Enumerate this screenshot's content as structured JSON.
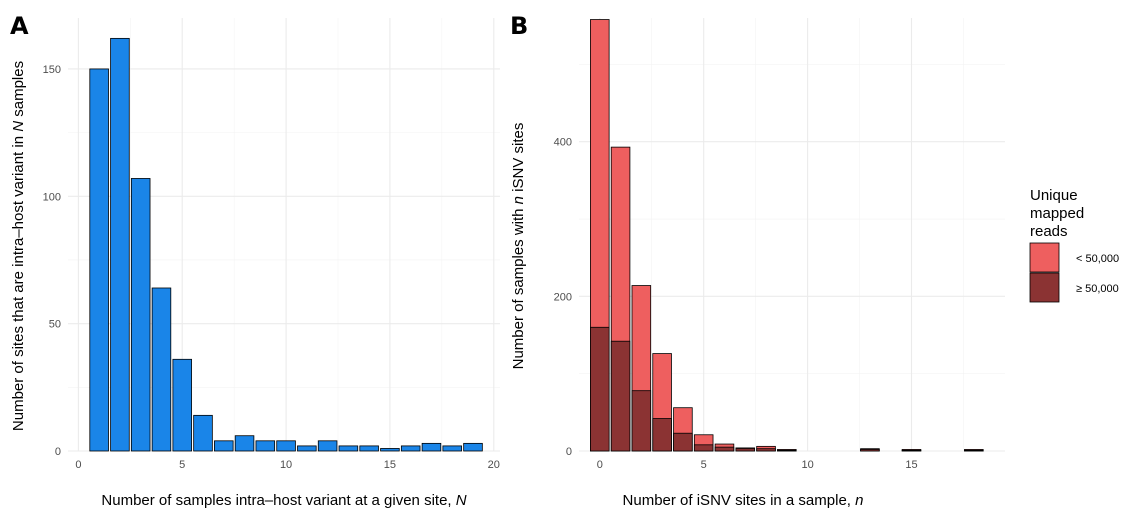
{
  "chart_data": [
    {
      "panel_label": "A",
      "type": "bar",
      "xlabel_text": "Number of samples intra–host variant at a given site, ",
      "xlabel_var": "N",
      "ylabel_text": "Number of sites that are intra–host variant in ",
      "ylabel_var": "N",
      "ylabel_suffix": " samples",
      "xlim": [
        -0.5,
        20.3
      ],
      "ylim": [
        0,
        170
      ],
      "xticks": [
        0,
        5,
        10,
        15,
        20
      ],
      "yticks": [
        0,
        50,
        100,
        150
      ],
      "x": [
        1,
        2,
        3,
        4,
        5,
        6,
        7,
        8,
        9,
        10,
        11,
        12,
        13,
        14,
        15,
        16,
        17,
        18,
        19
      ],
      "values": [
        150,
        162,
        107,
        64,
        36,
        14,
        4,
        6,
        4,
        4,
        2,
        4,
        2,
        2,
        1,
        2,
        3,
        2,
        3
      ],
      "bar_color": "#1a85e8",
      "grid": true
    },
    {
      "panel_label": "B",
      "type": "bar",
      "stacked": false,
      "xlabel_text": "Number of iSNV sites in a sample, ",
      "xlabel_var": "n",
      "ylabel_text": "Number of samples with ",
      "ylabel_var": "n",
      "ylabel_suffix": " iSNV sites",
      "xlim": [
        -1,
        19.5
      ],
      "ylim": [
        0,
        560
      ],
      "xticks": [
        0,
        5,
        10,
        15
      ],
      "yticks": [
        0,
        200,
        400
      ],
      "legend_title": [
        "Unique",
        "mapped",
        "reads"
      ],
      "legend_position": "right",
      "grid": true,
      "series": [
        {
          "name": "< 50,000",
          "color": "#ee5f5f",
          "x": [
            0,
            1,
            2,
            3,
            4,
            5,
            6,
            7,
            8,
            9,
            13,
            15,
            18
          ],
          "values": [
            558,
            393,
            214,
            126,
            56,
            21,
            9,
            4,
            6,
            2,
            3,
            2,
            2
          ]
        },
        {
          "name": "≥ 50,000",
          "color": "#8b3333",
          "x": [
            0,
            1,
            2,
            3,
            4,
            5,
            6,
            7,
            8,
            9,
            13,
            15,
            18
          ],
          "values": [
            160,
            142,
            78,
            42,
            23,
            8,
            5,
            3,
            3,
            1,
            2,
            1,
            1
          ]
        }
      ]
    }
  ]
}
